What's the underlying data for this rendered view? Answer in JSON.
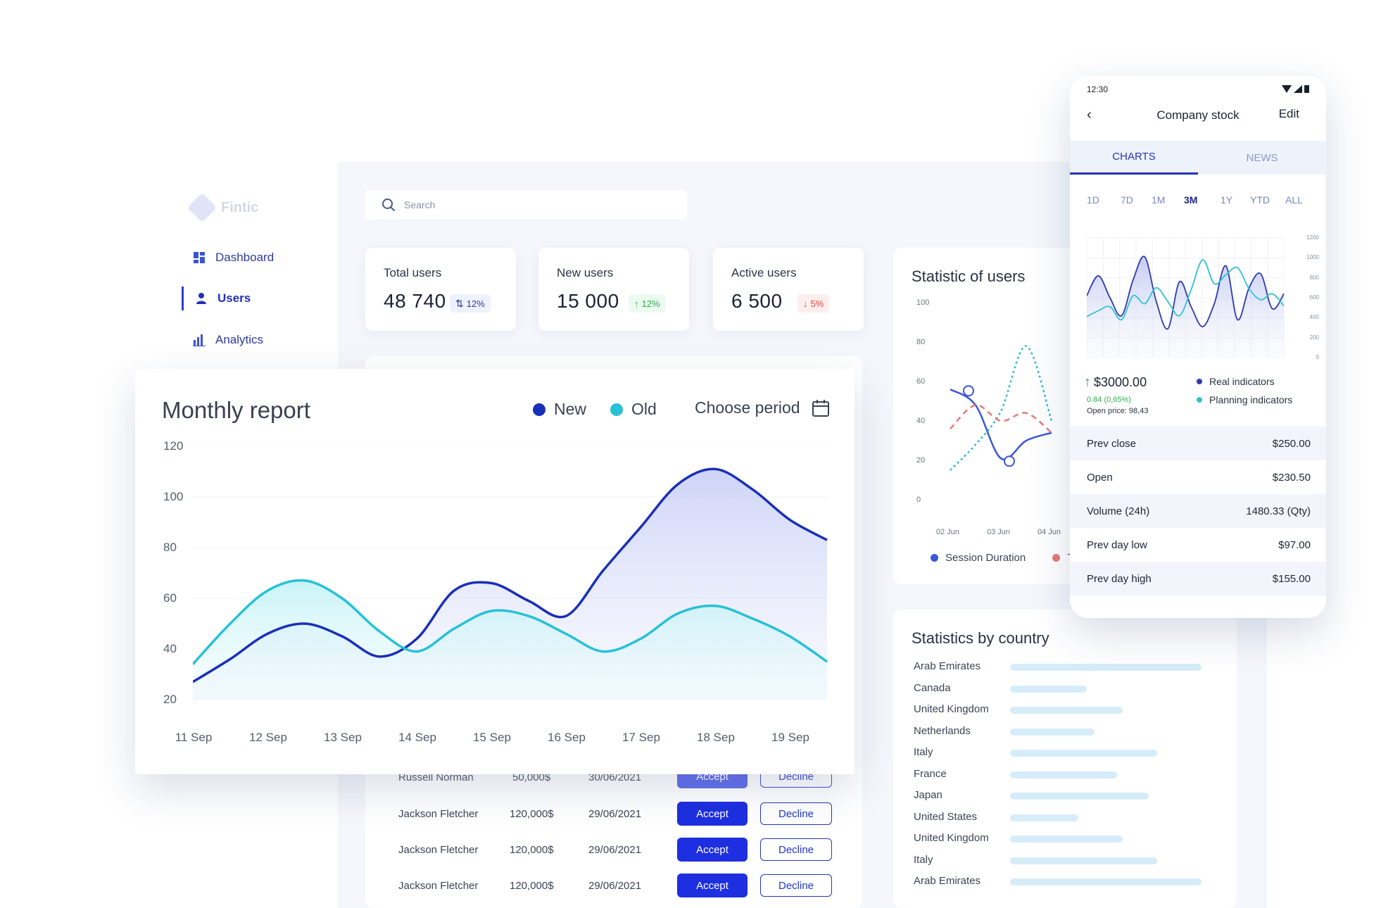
{
  "sidebar": {
    "items": [
      {
        "label": "Dashboard",
        "icon": "dashboard-icon"
      },
      {
        "label": "Users",
        "icon": "user-icon"
      },
      {
        "label": "Analytics",
        "icon": "bar-chart-icon"
      }
    ]
  },
  "search": {
    "placeholder": "Search"
  },
  "stats": [
    {
      "label": "Total users",
      "value": "48 740",
      "change": "12%",
      "direction": "both"
    },
    {
      "label": "New users",
      "value": "15 000",
      "change": "12%",
      "direction": "up"
    },
    {
      "label": "Active users",
      "value": "6 500",
      "change": "5%",
      "direction": "down"
    }
  ],
  "monthly_report": {
    "title": "Monthly report",
    "legend": {
      "new": "New",
      "old": "Old"
    },
    "period_label": "Choose period"
  },
  "table": {
    "accept_label": "Accept",
    "decline_label": "Decline",
    "rows": [
      {
        "name": "Russell Norman",
        "amount": "50,000$",
        "date": "30/06/2021"
      },
      {
        "name": "Jackson Fletcher",
        "amount": "120,000$",
        "date": "29/06/2021"
      },
      {
        "name": "Jackson Fletcher",
        "amount": "120,000$",
        "date": "29/06/2021"
      },
      {
        "name": "Jackson Fletcher",
        "amount": "120,000$",
        "date": "29/06/2021"
      }
    ]
  },
  "statistic_of_users": {
    "title": "Statistic of users",
    "legend": [
      "Session Duration",
      "T"
    ]
  },
  "statistics_by_country": {
    "title": "Statistics by country",
    "countries": [
      {
        "name": "Arab Emirates",
        "value": 0.95
      },
      {
        "name": "Canada",
        "value": 0.38
      },
      {
        "name": "United Kingdom",
        "value": 0.56
      },
      {
        "name": "Netherlands",
        "value": 0.42
      },
      {
        "name": "Italy",
        "value": 0.73
      },
      {
        "name": "France",
        "value": 0.53
      },
      {
        "name": "Japan",
        "value": 0.69
      },
      {
        "name": "United States",
        "value": 0.34
      },
      {
        "name": "United Kingdom",
        "value": 0.56
      },
      {
        "name": "Italy",
        "value": 0.73
      },
      {
        "name": "Arab Emirates",
        "value": 0.95
      }
    ]
  },
  "phone": {
    "time": "12:30",
    "title": "Company stock",
    "edit_label": "Edit",
    "tabs": [
      "CHARTS",
      "NEWS"
    ],
    "ranges": [
      "1D",
      "7D",
      "1M",
      "3M",
      "1Y",
      "YTD",
      "ALL"
    ],
    "selected_range": "3M",
    "price": "$3000.00",
    "change": "0.84 (0,65%)",
    "open_price": "Open price: 98,43",
    "legend": [
      "Real indicators",
      "Planning indicators"
    ],
    "stats": [
      {
        "label": "Prev close",
        "value": "$250.00"
      },
      {
        "label": "Open",
        "value": "$230.50"
      },
      {
        "label": "Volume (24h)",
        "value": "1480.33 (Qty)"
      },
      {
        "label": "Prev day low",
        "value": "$97.00"
      },
      {
        "label": "Prev day high",
        "value": "$155.00"
      }
    ]
  },
  "chart_data": [
    {
      "type": "area",
      "title": "Monthly report",
      "categories": [
        "11 Sep",
        "12 Sep",
        "13 Sep",
        "14 Sep",
        "15 Sep",
        "16 Sep",
        "17 Sep",
        "18 Sep",
        "19 Sep"
      ],
      "yticks": [
        20,
        40,
        60,
        80,
        100,
        120
      ],
      "ylim": [
        20,
        120
      ],
      "series": [
        {
          "name": "New",
          "color": "#1a2fb8",
          "x": [
            0,
            0.5,
            1,
            1.5,
            2,
            2.5,
            3,
            3.5,
            4,
            4.5,
            5,
            5.5,
            6,
            6.5,
            7,
            7.5,
            8,
            8.5
          ],
          "values": [
            27,
            36,
            46,
            50,
            45,
            37,
            44,
            63,
            66,
            59,
            53,
            71,
            88,
            105,
            111,
            103,
            91,
            83
          ]
        },
        {
          "name": "Old",
          "color": "#27c1d6",
          "x": [
            0,
            0.5,
            1,
            1.5,
            2,
            2.5,
            3,
            3.5,
            4,
            4.5,
            5,
            5.5,
            6,
            6.5,
            7,
            7.5,
            8,
            8.5
          ],
          "values": [
            34,
            50,
            63,
            67,
            60,
            47,
            39,
            48,
            55,
            53,
            46,
            39,
            44,
            54,
            57,
            52,
            45,
            35
          ]
        }
      ]
    },
    {
      "type": "line",
      "title": "Statistic of users",
      "categories": [
        "02 Jun",
        "03 Jun",
        "04 Jun"
      ],
      "yticks": [
        0,
        20,
        40,
        60,
        80,
        100
      ],
      "ylim": [
        0,
        100
      ],
      "series": [
        {
          "name": "Session Duration",
          "color": "#3b56d6",
          "x": [
            0,
            0.5,
            1,
            1.5,
            2
          ],
          "values": [
            56,
            48,
            21,
            30,
            34
          ]
        },
        {
          "name": "",
          "style": "dotted",
          "color": "#2fb9d8",
          "x": [
            0,
            0.5,
            1,
            1.5,
            2
          ],
          "values": [
            15,
            28,
            45,
            78,
            40
          ]
        },
        {
          "name": "",
          "style": "dashed",
          "color": "#e57a7a",
          "x": [
            0,
            0.5,
            1,
            1.5,
            2
          ],
          "values": [
            36,
            48,
            40,
            44,
            34
          ]
        }
      ]
    },
    {
      "type": "line",
      "title": "Company stock",
      "categories": [
        "1D",
        "7D",
        "1M",
        "3M",
        "1Y",
        "YTD",
        "ALL"
      ],
      "yticks": [
        0,
        200,
        400,
        600,
        800,
        1000,
        1200
      ],
      "ylim": [
        0,
        1200
      ],
      "series": [
        {
          "name": "Real indicators",
          "color": "#2b3bb0",
          "x": [
            0,
            1,
            2,
            3,
            4,
            5,
            6,
            7,
            8,
            9,
            10,
            11,
            12,
            13,
            14,
            15,
            16,
            17
          ],
          "values": [
            620,
            820,
            600,
            420,
            780,
            1010,
            560,
            290,
            760,
            510,
            310,
            540,
            920,
            380,
            700,
            840,
            490,
            640
          ]
        },
        {
          "name": "Planning indicators",
          "color": "#2fc2d4",
          "x": [
            0,
            1,
            2,
            3,
            4,
            5,
            6,
            7,
            8,
            9,
            10,
            11,
            12,
            13,
            14,
            15,
            16,
            17
          ],
          "values": [
            410,
            470,
            510,
            380,
            620,
            540,
            700,
            560,
            420,
            680,
            980,
            740,
            830,
            900,
            690,
            580,
            640,
            520
          ]
        }
      ]
    }
  ]
}
